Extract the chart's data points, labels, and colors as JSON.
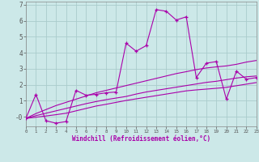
{
  "xlabel": "Windchill (Refroidissement éolien,°C)",
  "bg_color": "#cce8e8",
  "line_color": "#aa00aa",
  "grid_color": "#aacccc",
  "x_data": [
    0,
    1,
    2,
    3,
    4,
    5,
    6,
    7,
    8,
    9,
    10,
    11,
    12,
    13,
    14,
    15,
    16,
    17,
    18,
    19,
    20,
    21,
    22,
    23
  ],
  "y_main": [
    -0.1,
    1.4,
    -0.25,
    -0.4,
    -0.3,
    1.65,
    1.35,
    1.4,
    1.5,
    1.55,
    4.6,
    4.1,
    4.45,
    6.7,
    6.6,
    6.05,
    6.25,
    2.45,
    3.35,
    3.45,
    1.1,
    2.85,
    2.35,
    2.45
  ],
  "y_line1": [
    -0.1,
    0.2,
    0.45,
    0.7,
    0.9,
    1.1,
    1.3,
    1.5,
    1.65,
    1.8,
    1.95,
    2.1,
    2.25,
    2.4,
    2.55,
    2.7,
    2.82,
    2.95,
    3.05,
    3.12,
    3.18,
    3.28,
    3.42,
    3.52
  ],
  "y_line2": [
    -0.1,
    0.07,
    0.22,
    0.37,
    0.52,
    0.67,
    0.82,
    0.95,
    1.07,
    1.17,
    1.27,
    1.42,
    1.55,
    1.65,
    1.75,
    1.85,
    1.95,
    2.05,
    2.15,
    2.22,
    2.32,
    2.42,
    2.5,
    2.55
  ],
  "y_line3": [
    -0.1,
    -0.03,
    0.05,
    0.13,
    0.22,
    0.37,
    0.52,
    0.67,
    0.78,
    0.9,
    1.02,
    1.12,
    1.22,
    1.32,
    1.42,
    1.52,
    1.62,
    1.68,
    1.73,
    1.78,
    1.84,
    1.94,
    2.04,
    2.14
  ],
  "xlim": [
    0,
    23
  ],
  "ylim": [
    -0.6,
    7.2
  ],
  "yticks": [
    0,
    1,
    2,
    3,
    4,
    5,
    6,
    7
  ],
  "ytick_labels": [
    "-0",
    "1",
    "2",
    "3",
    "4",
    "5",
    "6",
    "7"
  ]
}
